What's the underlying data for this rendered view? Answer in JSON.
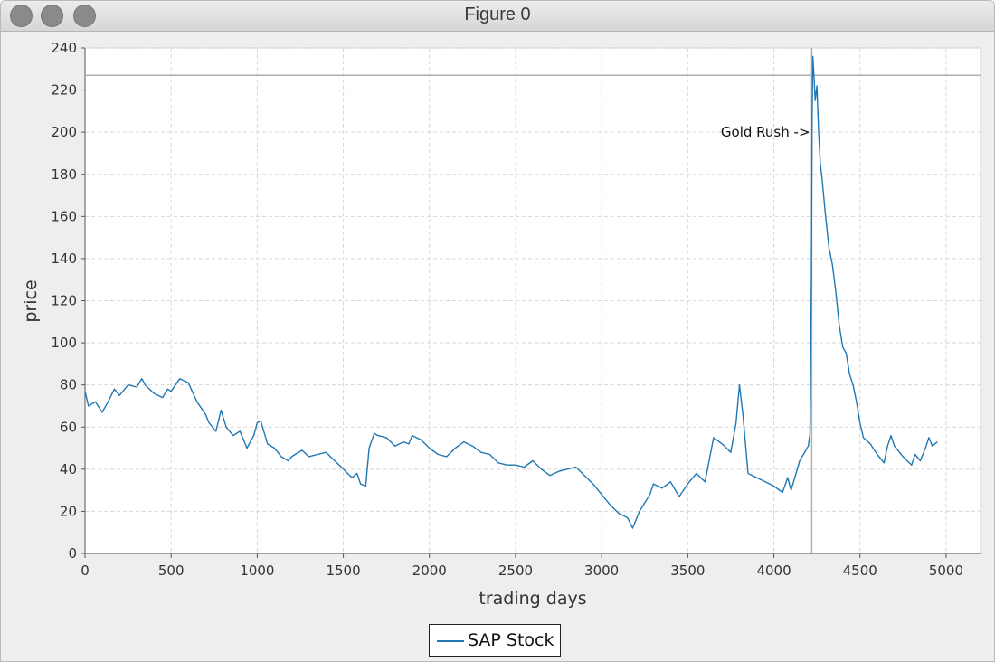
{
  "window": {
    "title": "Figure 0"
  },
  "titlebar_buttons": [
    {
      "name": "close",
      "color": "#8a8a8a"
    },
    {
      "name": "minimize",
      "color": "#8a8a8a"
    },
    {
      "name": "zoom",
      "color": "#8a8a8a"
    }
  ],
  "chart_data": {
    "type": "line",
    "title": "",
    "xlabel": "trading days",
    "ylabel": "price",
    "xlim": [
      0,
      5200
    ],
    "ylim": [
      0,
      240
    ],
    "xticks": [
      0,
      500,
      1000,
      1500,
      2000,
      2500,
      3000,
      3500,
      4000,
      4500,
      5000
    ],
    "yticks": [
      0,
      20,
      40,
      60,
      80,
      100,
      120,
      140,
      160,
      180,
      200,
      220,
      240
    ],
    "grid": true,
    "legend_position": "bottom-center",
    "series": [
      {
        "name": "SAP Stock",
        "color": "#1f77b4",
        "points": [
          [
            0,
            77
          ],
          [
            20,
            70
          ],
          [
            60,
            72
          ],
          [
            100,
            67
          ],
          [
            140,
            73
          ],
          [
            170,
            78
          ],
          [
            200,
            75
          ],
          [
            250,
            80
          ],
          [
            300,
            79
          ],
          [
            330,
            83
          ],
          [
            350,
            80
          ],
          [
            400,
            76
          ],
          [
            450,
            74
          ],
          [
            480,
            78
          ],
          [
            500,
            77
          ],
          [
            550,
            83
          ],
          [
            600,
            81
          ],
          [
            650,
            72
          ],
          [
            700,
            66
          ],
          [
            720,
            62
          ],
          [
            760,
            58
          ],
          [
            790,
            68
          ],
          [
            820,
            60
          ],
          [
            860,
            56
          ],
          [
            900,
            58
          ],
          [
            940,
            50
          ],
          [
            980,
            56
          ],
          [
            1000,
            62
          ],
          [
            1020,
            63
          ],
          [
            1060,
            52
          ],
          [
            1100,
            50
          ],
          [
            1140,
            46
          ],
          [
            1180,
            44
          ],
          [
            1200,
            46
          ],
          [
            1260,
            49
          ],
          [
            1300,
            46
          ],
          [
            1350,
            47
          ],
          [
            1400,
            48
          ],
          [
            1450,
            44
          ],
          [
            1500,
            40
          ],
          [
            1550,
            36
          ],
          [
            1580,
            38
          ],
          [
            1600,
            33
          ],
          [
            1630,
            32
          ],
          [
            1650,
            50
          ],
          [
            1680,
            57
          ],
          [
            1700,
            56
          ],
          [
            1750,
            55
          ],
          [
            1800,
            51
          ],
          [
            1850,
            53
          ],
          [
            1880,
            52
          ],
          [
            1900,
            56
          ],
          [
            1950,
            54
          ],
          [
            2000,
            50
          ],
          [
            2050,
            47
          ],
          [
            2100,
            46
          ],
          [
            2150,
            50
          ],
          [
            2200,
            53
          ],
          [
            2250,
            51
          ],
          [
            2300,
            48
          ],
          [
            2350,
            47
          ],
          [
            2400,
            43
          ],
          [
            2450,
            42
          ],
          [
            2500,
            42
          ],
          [
            2550,
            41
          ],
          [
            2600,
            44
          ],
          [
            2650,
            40
          ],
          [
            2700,
            37
          ],
          [
            2750,
            39
          ],
          [
            2800,
            40
          ],
          [
            2850,
            41
          ],
          [
            2900,
            37
          ],
          [
            2950,
            33
          ],
          [
            3000,
            28
          ],
          [
            3050,
            23
          ],
          [
            3100,
            19
          ],
          [
            3150,
            17
          ],
          [
            3180,
            12
          ],
          [
            3220,
            20
          ],
          [
            3280,
            28
          ],
          [
            3300,
            33
          ],
          [
            3350,
            31
          ],
          [
            3400,
            34
          ],
          [
            3450,
            27
          ],
          [
            3500,
            33
          ],
          [
            3550,
            38
          ],
          [
            3600,
            34
          ],
          [
            3650,
            55
          ],
          [
            3700,
            52
          ],
          [
            3750,
            48
          ],
          [
            3780,
            62
          ],
          [
            3800,
            80
          ],
          [
            3820,
            66
          ],
          [
            3850,
            38
          ],
          [
            3900,
            36
          ],
          [
            3950,
            34
          ],
          [
            4000,
            32
          ],
          [
            4050,
            29
          ],
          [
            4080,
            36
          ],
          [
            4100,
            30
          ],
          [
            4150,
            44
          ],
          [
            4200,
            51
          ],
          [
            4210,
            57
          ],
          [
            4218,
            130
          ],
          [
            4222,
            205
          ],
          [
            4226,
            236
          ],
          [
            4232,
            228
          ],
          [
            4240,
            215
          ],
          [
            4250,
            222
          ],
          [
            4260,
            200
          ],
          [
            4270,
            185
          ],
          [
            4280,
            178
          ],
          [
            4300,
            160
          ],
          [
            4320,
            145
          ],
          [
            4340,
            137
          ],
          [
            4360,
            124
          ],
          [
            4380,
            108
          ],
          [
            4400,
            98
          ],
          [
            4420,
            95
          ],
          [
            4440,
            85
          ],
          [
            4460,
            80
          ],
          [
            4480,
            72
          ],
          [
            4500,
            62
          ],
          [
            4520,
            55
          ],
          [
            4560,
            52
          ],
          [
            4600,
            47
          ],
          [
            4640,
            43
          ],
          [
            4660,
            51
          ],
          [
            4680,
            56
          ],
          [
            4700,
            51
          ],
          [
            4750,
            46
          ],
          [
            4800,
            42
          ],
          [
            4820,
            47
          ],
          [
            4850,
            44
          ],
          [
            4880,
            50
          ],
          [
            4900,
            55
          ],
          [
            4920,
            51
          ],
          [
            4950,
            53
          ]
        ]
      }
    ],
    "hline": {
      "y": 227,
      "color": "#b0b0b0"
    },
    "vline": {
      "x": 4220,
      "color": "#b0b0b0"
    },
    "annotations": [
      {
        "text": "Gold Rush ->",
        "x": 4210,
        "y": 200
      }
    ]
  }
}
